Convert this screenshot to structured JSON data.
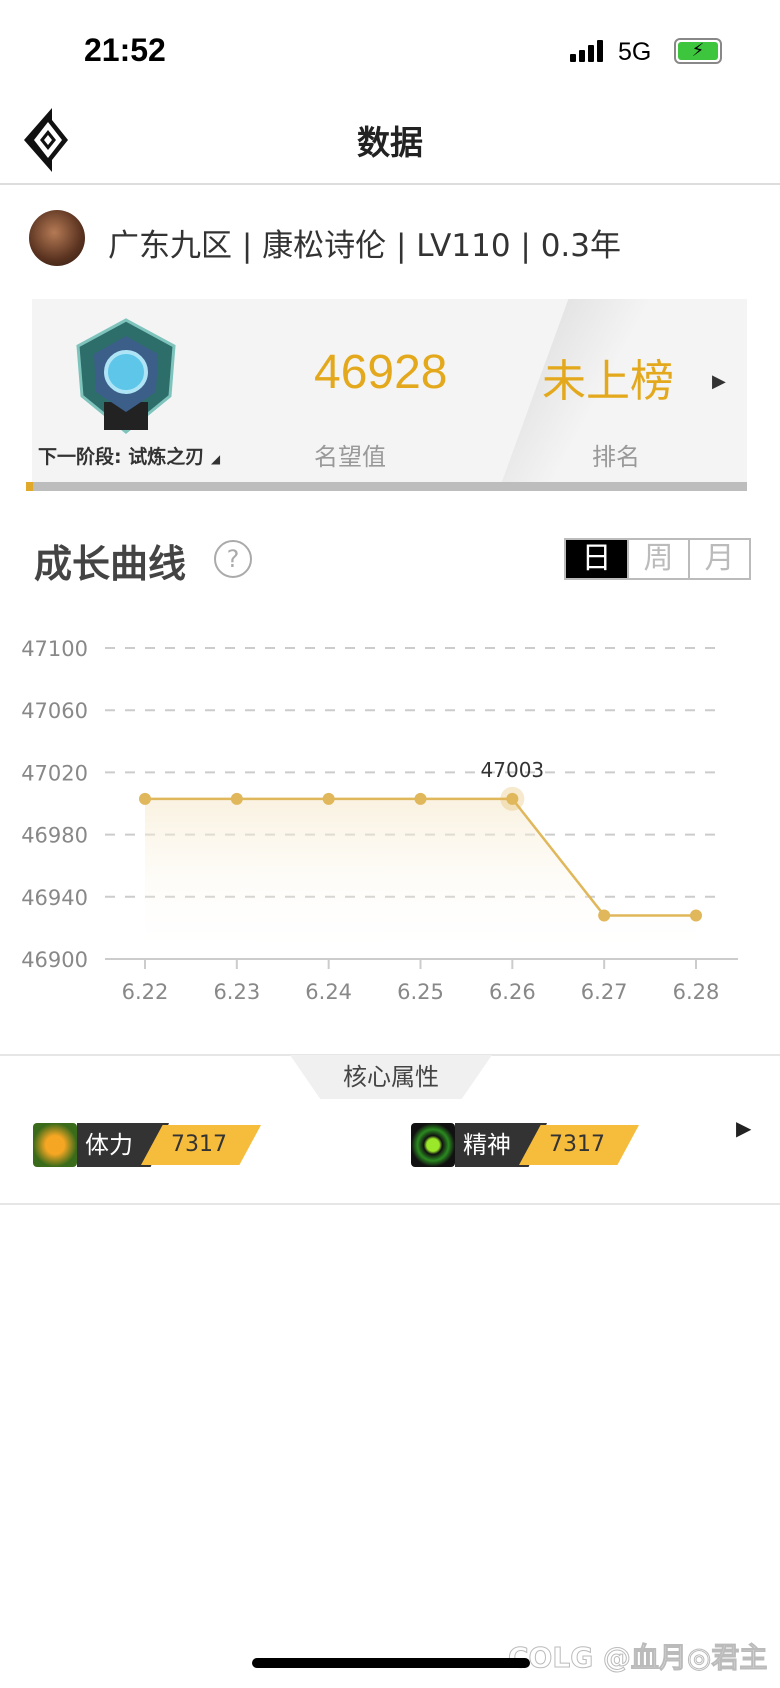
{
  "status_bar": {
    "time": "21:52",
    "network": "5G",
    "battery": "charging"
  },
  "header": {
    "title": "数据",
    "logo_icon": "diamond-logo-icon"
  },
  "profile": {
    "info": "广东九区 | 康松诗伦 | LV110 | 0.3年"
  },
  "card": {
    "next_stage": "下一阶段: 试炼之刃",
    "fame_value": "46928",
    "fame_label": "名望值",
    "rank_value": "未上榜",
    "rank_label": "排名",
    "progress_percent": 1
  },
  "growth": {
    "title": "成长曲线",
    "tabs": [
      "日",
      "周",
      "月"
    ],
    "active_tab": "日"
  },
  "chart_data": {
    "type": "line",
    "categories": [
      "6.22",
      "6.23",
      "6.24",
      "6.25",
      "6.26",
      "6.27",
      "6.28"
    ],
    "values": [
      47003,
      47003,
      47003,
      47003,
      47003,
      46928,
      46928
    ],
    "yticks": [
      "47100",
      "47060",
      "47020",
      "46980",
      "46940",
      "46900"
    ],
    "ylim": [
      46900,
      47100
    ],
    "highlight": {
      "category": "6.26",
      "label": "47003"
    },
    "grid": true,
    "color": "#e0b75a"
  },
  "attributes": {
    "tab": "核心属性",
    "items": [
      {
        "name": "体力",
        "value": "7317",
        "icon": "person-icon"
      },
      {
        "name": "精神",
        "value": "7317",
        "icon": "eye-icon"
      }
    ]
  },
  "watermark": "COLG @血月◎君主"
}
